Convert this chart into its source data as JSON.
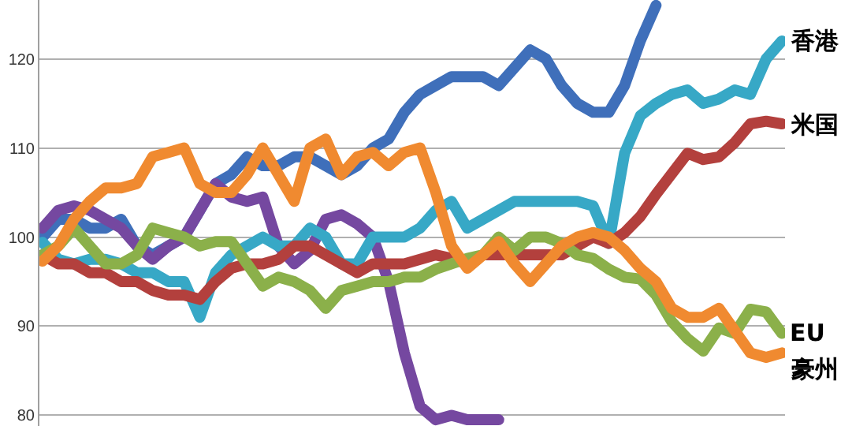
{
  "chart_data": {
    "type": "line",
    "categories": [
      null,
      null,
      null,
      null,
      null,
      null,
      null,
      null,
      null,
      null,
      null,
      null,
      null,
      null,
      null,
      null,
      null,
      null,
      null,
      null,
      null,
      null,
      null,
      null,
      null,
      null,
      null,
      null,
      null,
      null,
      null,
      null,
      null,
      null,
      null,
      null,
      null,
      null,
      null,
      null,
      null,
      null,
      null,
      null,
      null,
      null,
      null,
      null
    ],
    "series": [
      {
        "color": "#3f6fba",
        "values": [
          100,
          102,
          102,
          101,
          101,
          102,
          99,
          98,
          99,
          100,
          103,
          106,
          107,
          109,
          108,
          108,
          109,
          109,
          108,
          107,
          108,
          110,
          111,
          114,
          116,
          117,
          118,
          118,
          118,
          117,
          119,
          121,
          120,
          117,
          115,
          114,
          114,
          117,
          122,
          126,
          null,
          null,
          null,
          null,
          null,
          null,
          null,
          null
        ]
      },
      {
        "color": "#7548a0",
        "values": [
          101,
          103,
          103.5,
          103,
          102,
          101,
          99,
          97.5,
          99,
          100,
          103,
          106,
          104.5,
          104,
          104.5,
          99,
          97,
          98.5,
          102,
          102.5,
          101.5,
          100,
          95,
          87,
          81,
          79.5,
          80,
          79.5,
          79.5,
          79.5,
          null,
          null,
          null,
          null,
          null,
          null,
          null,
          null,
          null,
          null,
          null,
          null,
          null,
          null,
          null,
          null,
          null,
          null
        ]
      },
      {
        "name": "香港",
        "color": "#37a8c6",
        "values": [
          99.4,
          97.5,
          97,
          97.5,
          97.5,
          97,
          96,
          96,
          95,
          95,
          91,
          96,
          98,
          99,
          100,
          99,
          99,
          101,
          100,
          97,
          97,
          100,
          100,
          100,
          101,
          103,
          104,
          101,
          102,
          103,
          104,
          104,
          104,
          104,
          104,
          103.5,
          99.3,
          109.4,
          113.6,
          115,
          116,
          116.5,
          115,
          115.5,
          116.5,
          116,
          120,
          122
        ]
      },
      {
        "name": "米国",
        "color": "#b3403d",
        "values": [
          98,
          97,
          97,
          96,
          96,
          95,
          95,
          94,
          93.5,
          93.5,
          93,
          95,
          96.5,
          97,
          97,
          97.5,
          99,
          99,
          98,
          97,
          96,
          97,
          97,
          97,
          97.5,
          98,
          97.6,
          97,
          98,
          98,
          98,
          98,
          98,
          98,
          99,
          100,
          99.3,
          100.5,
          102.3,
          104.8,
          107.1,
          109.4,
          108.7,
          109,
          110.6,
          112.7,
          113,
          112.7
        ]
      },
      {
        "name": "EU",
        "color": "#8bb04a",
        "values": [
          98,
          99,
          101,
          99,
          97,
          97,
          98,
          101,
          100.5,
          100,
          99,
          99.5,
          99.5,
          97,
          94.5,
          95.5,
          95,
          94,
          92,
          94,
          94.5,
          95,
          95,
          95.5,
          95.5,
          96.4,
          97,
          97.6,
          98,
          100,
          98.5,
          100,
          100,
          99.3,
          98,
          97.6,
          96.4,
          95.5,
          95.3,
          93.5,
          90.5,
          88.6,
          87.2,
          89.8,
          89.2,
          91.9,
          91.6,
          89.2
        ]
      },
      {
        "name": "豪州",
        "color": "#f08a30",
        "values": [
          97.3,
          99,
          102,
          104,
          105.5,
          105.5,
          106,
          109,
          109.5,
          110,
          106,
          105,
          105,
          107,
          110,
          107,
          104,
          110,
          111,
          107,
          109,
          109.5,
          108,
          109.5,
          110,
          105,
          99,
          96.5,
          98,
          99.5,
          97,
          95,
          97,
          99,
          100,
          100.5,
          100,
          98.5,
          96.5,
          95,
          92,
          91,
          91,
          92,
          89.5,
          87,
          86.5,
          87
        ]
      }
    ],
    "ylim": [
      78.8,
      126.6
    ],
    "yticks": [
      80,
      90,
      100,
      110,
      120
    ],
    "grid": "y",
    "tick_labels": "y",
    "line_style": "solid"
  }
}
